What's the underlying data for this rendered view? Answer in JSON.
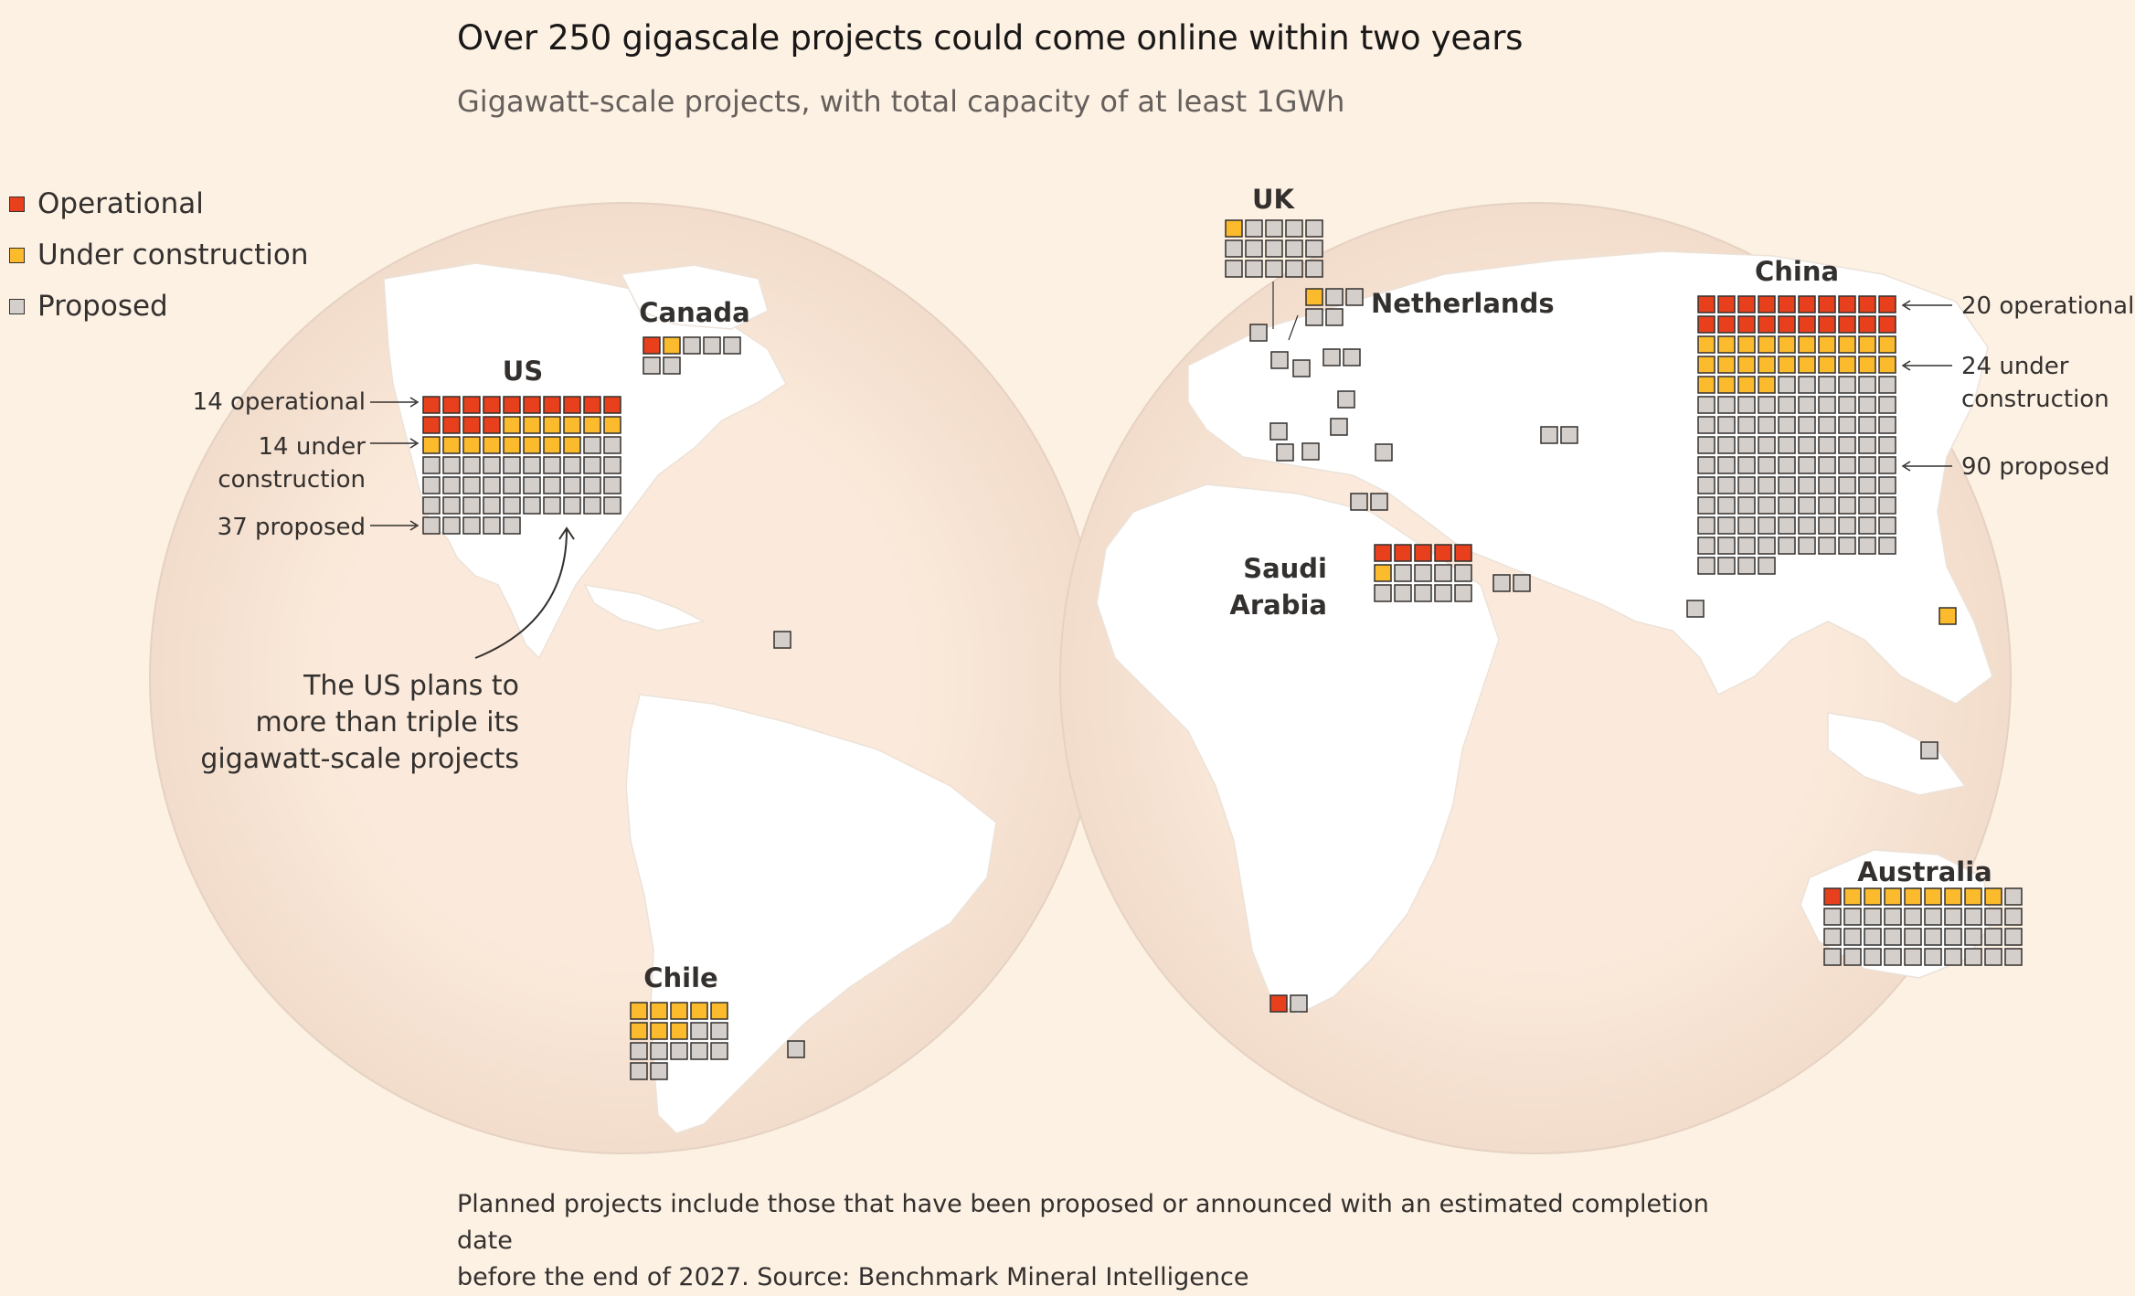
{
  "title": "Over 250 gigascale projects could come online within two years",
  "subtitle": "Gigawatt-scale projects, with total capacity of at least 1GWh",
  "legend": [
    {
      "label": "Operational",
      "color": "#e8401c"
    },
    {
      "label": "Under construction",
      "color": "#fbbb2c"
    },
    {
      "label": "Proposed",
      "color": "#d5cfcb"
    }
  ],
  "colors": {
    "operational": "#e8401c",
    "construction": "#fbbb2c",
    "proposed": "#d5cfcb",
    "background": "#fdf1e4",
    "land": "#ffffff"
  },
  "countries": [
    {
      "name": "US",
      "operational": 14,
      "under_construction": 14,
      "proposed": 37
    },
    {
      "name": "Canada",
      "operational": 1,
      "under_construction": 1,
      "proposed": 5
    },
    {
      "name": "Chile",
      "operational": 0,
      "under_construction": 8,
      "proposed": 9
    },
    {
      "name": "UK",
      "operational": 0,
      "under_construction": 1,
      "proposed": 14
    },
    {
      "name": "Netherlands",
      "operational": 0,
      "under_construction": 1,
      "proposed": 4
    },
    {
      "name": "Saudi Arabia",
      "operational": 5,
      "under_construction": 1,
      "proposed": 9
    },
    {
      "name": "China",
      "operational": 20,
      "under_construction": 24,
      "proposed": 90
    },
    {
      "name": "Australia",
      "operational": 1,
      "under_construction": 8,
      "proposed": 31
    }
  ],
  "annotations": {
    "us_operational": "14 operational",
    "us_under_1": "14 under",
    "us_under_2": "construction",
    "us_proposed": "37 proposed",
    "us_note": [
      "The US plans to",
      "more than triple its",
      "gigawatt-scale projects"
    ],
    "china_operational": "20 operational",
    "china_under_1": "24 under",
    "china_under_2": "construction",
    "china_proposed": "90 proposed"
  },
  "country_labels": {
    "us": "US",
    "canada": "Canada",
    "chile": "Chile",
    "uk": "UK",
    "netherlands": "Netherlands",
    "saudi_1": "Saudi",
    "saudi_2": "Arabia",
    "china": "China",
    "australia": "Australia"
  },
  "footnote": [
    "Planned projects include those that have been proposed or announced with an estimated completion date",
    "before the end of 2027. Source: Benchmark Mineral Intelligence"
  ]
}
